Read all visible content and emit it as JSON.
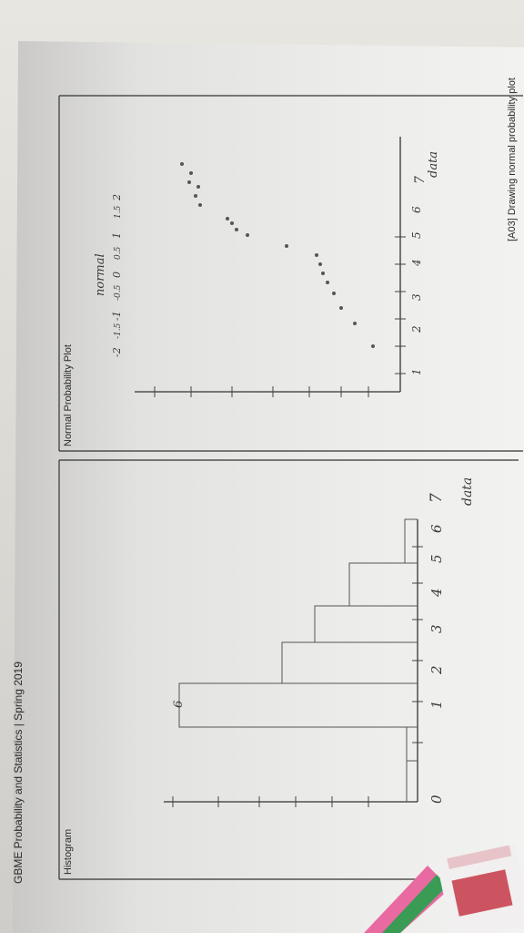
{
  "document": {
    "header_left": "GBME Probability and Statistics | Spring 2019",
    "header_right": "[A03] Drawing normal probability plot"
  },
  "histogram": {
    "panel_title": "Histogram",
    "origin_mark": "0",
    "x_ticks": [
      "1",
      "2",
      "3",
      "4",
      "5",
      "6",
      "7"
    ],
    "x_label": "data",
    "bar_label": "6"
  },
  "normal_plot": {
    "panel_title": "Normal Probability Plot",
    "y_label": "data",
    "y_ticks": [
      "1",
      "2",
      "3",
      "4",
      "5",
      "6",
      "7"
    ],
    "x_ticks": [
      "-2",
      "-1.5",
      "-1",
      "-0.5",
      "0",
      "0.5",
      "1",
      "1.5",
      "2"
    ],
    "x_label": "normal"
  }
}
